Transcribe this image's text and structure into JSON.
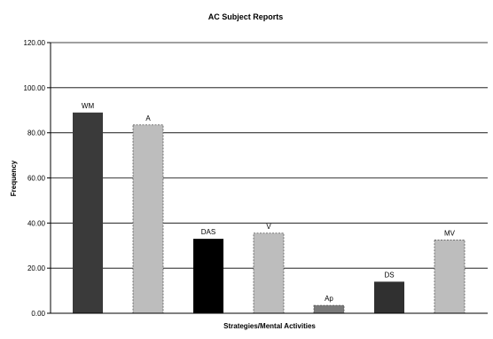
{
  "chart_data": {
    "type": "bar",
    "title": "AC Subject Reports",
    "xlabel": "Strategies/Mental Activities",
    "ylabel": "Frequency",
    "ylim": [
      0,
      120
    ],
    "yticks": [
      "0.00",
      "20.00",
      "40.00",
      "60.00",
      "80.00",
      "100.00",
      "120.00"
    ],
    "grid": true,
    "legend": "none",
    "categories": [
      "WM",
      "A",
      "DAS",
      "V",
      "Ap",
      "DS",
      "MV"
    ],
    "values": [
      89,
      83.5,
      33,
      35.5,
      3.5,
      14,
      32.5
    ],
    "colors": [
      "#3a3a3a",
      "#bdbdbd",
      "#000000",
      "#bdbdbd",
      "#7a7a7a",
      "#303030",
      "#bdbdbd"
    ],
    "dashed": [
      false,
      true,
      false,
      true,
      true,
      false,
      true
    ]
  }
}
